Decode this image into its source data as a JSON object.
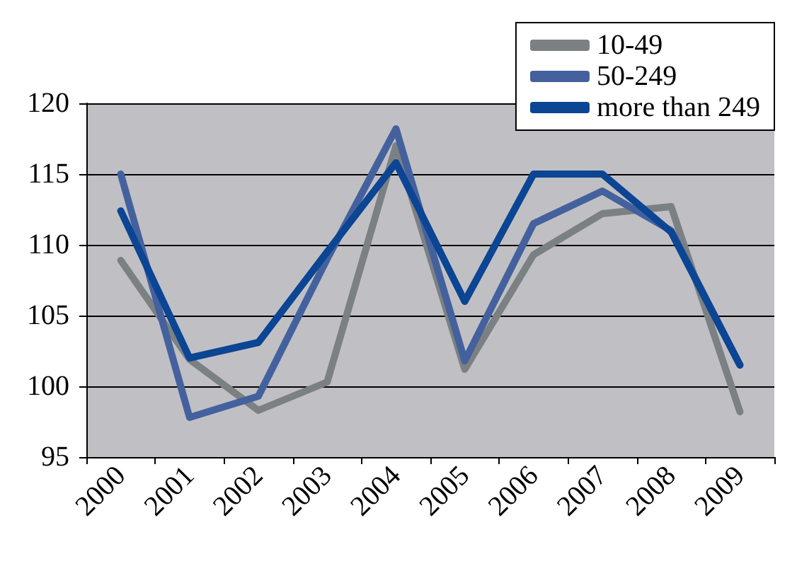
{
  "chart_data": {
    "type": "line",
    "categories": [
      "2000",
      "2001",
      "2002",
      "2003",
      "2004",
      "2005",
      "2006",
      "2007",
      "2008",
      "2009"
    ],
    "series": [
      {
        "name": "10-49",
        "color": "#7b8083",
        "values": [
          108.9,
          101.9,
          98.3,
          100.3,
          117,
          101.2,
          109.3,
          112.2,
          112.7,
          98.2
        ]
      },
      {
        "name": "50-249",
        "color": "#44619e",
        "values": [
          115,
          97.8,
          99.3,
          109,
          118.2,
          101.8,
          111.5,
          113.8,
          111,
          101.5
        ]
      },
      {
        "name": "more than 249",
        "color": "#0b4593",
        "values": [
          112.4,
          102,
          103.1,
          109.5,
          115.8,
          106,
          115,
          115,
          110.9,
          101.5
        ]
      }
    ],
    "ylim": [
      95,
      120
    ],
    "yticks": [
      95,
      100,
      105,
      110,
      115,
      120
    ],
    "grid": "y",
    "legend": "top right",
    "marker": "none",
    "line_style": "solid"
  }
}
